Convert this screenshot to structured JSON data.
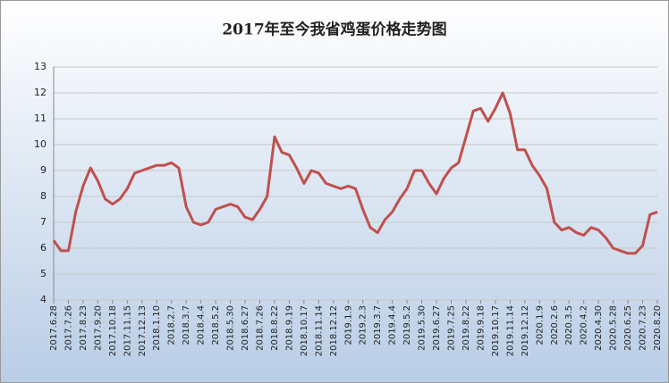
{
  "chart_data": {
    "type": "line",
    "title": "2017年至今我省鸡蛋价格走势图",
    "categories": [
      "2017.6.28",
      null,
      "2017.7.26",
      null,
      "2017.8.23",
      null,
      "2017.9.20",
      null,
      "2017.10.18",
      null,
      "2017.11.15",
      null,
      "2017.12.13",
      null,
      "2018.1.10",
      null,
      "2018.2.7",
      null,
      "2018.3.7",
      null,
      "2018.4.4",
      null,
      "2018.5.2",
      null,
      "2018.5.30",
      null,
      "2018.6.27",
      null,
      "2018.7.26",
      null,
      "2018.8.22",
      null,
      "2018.9.19",
      null,
      "2018.10.17",
      null,
      "2018.11.14",
      null,
      "2018.12.12",
      null,
      "2019.1.9",
      null,
      "2019.2.3",
      null,
      "2019.3.7",
      null,
      "2019.4.4",
      null,
      "2019.5.2",
      null,
      "2019.5.30",
      null,
      "2019.6.27",
      null,
      "2019.7.25",
      null,
      "2019.8.22",
      null,
      "2019.9.18",
      null,
      "2019.10.17",
      null,
      "2019.11.14",
      null,
      "2019.12.12",
      null,
      "2020.1.9",
      null,
      "2020.2.6",
      null,
      "2020.3.5",
      null,
      "2020.4.2",
      null,
      "2020.4.30",
      null,
      "2020.5.28",
      null,
      "2020.6.25",
      null,
      "2020.7.23",
      null,
      "2020.8.20"
    ],
    "series": [
      {
        "name": "鸡蛋价格",
        "color": "#c0504d",
        "values": [
          6.3,
          5.9,
          5.9,
          7.4,
          8.4,
          9.1,
          8.6,
          7.9,
          7.7,
          7.9,
          8.3,
          8.9,
          9.0,
          9.1,
          9.2,
          9.2,
          9.3,
          9.1,
          7.6,
          7.0,
          6.9,
          7.0,
          7.5,
          7.6,
          7.7,
          7.6,
          7.2,
          7.1,
          7.5,
          8.0,
          10.3,
          9.7,
          9.6,
          9.1,
          8.5,
          9.0,
          8.9,
          8.5,
          8.4,
          8.3,
          8.4,
          8.3,
          7.5,
          6.8,
          6.6,
          7.1,
          7.4,
          7.9,
          8.3,
          9.0,
          9.0,
          8.5,
          8.1,
          8.7,
          9.1,
          9.3,
          10.3,
          11.3,
          11.4,
          10.9,
          11.4,
          12.0,
          11.2,
          9.8,
          9.8,
          9.2,
          8.8,
          8.3,
          7.0,
          6.7,
          6.8,
          6.6,
          6.5,
          6.8,
          6.7,
          6.4,
          6.0,
          5.9,
          5.8,
          5.8,
          6.1,
          7.3,
          7.4
        ]
      }
    ],
    "ylim": [
      4,
      13
    ],
    "yticks": [
      4,
      5,
      6,
      7,
      8,
      9,
      10,
      11,
      12,
      13
    ],
    "grid": true
  }
}
